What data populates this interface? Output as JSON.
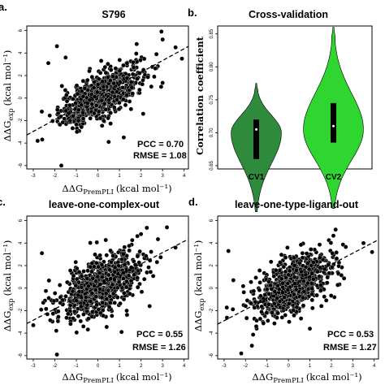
{
  "chart_data": [
    {
      "type": "scatter",
      "panel_label": "a.",
      "title": "S796",
      "xlabel_main": "ΔΔG",
      "xlabel_sub": "PremPLI",
      "xlabel_unit": "(kcal mol⁻¹)",
      "ylabel_main": "ΔΔG",
      "ylabel_sub": "exp",
      "ylabel_unit": "(kcal mol⁻¹)",
      "xlim": [
        -3.3,
        4.2
      ],
      "ylim": [
        -6.3,
        6.4
      ],
      "xticks": [
        -3,
        -2,
        -1,
        0,
        1,
        2,
        3,
        4
      ],
      "yticks": [
        -6,
        -4,
        -2,
        0,
        2,
        4,
        6
      ],
      "trend": {
        "slope": 1.05,
        "intercept": 0.18
      },
      "cloud": {
        "n": 796,
        "mean_x": 0.15,
        "mean_y": 0.25,
        "sd_x": 0.95,
        "sd_y": 1.35,
        "r": 0.7
      },
      "points": [
        [
          2.95,
          5.9
        ],
        [
          3.0,
          5.2
        ],
        [
          1.8,
          4.8
        ],
        [
          -1.9,
          4.6
        ],
        [
          3.6,
          4.5
        ],
        [
          3.9,
          3.5
        ],
        [
          -2.3,
          3.1
        ],
        [
          -1.5,
          3.6
        ],
        [
          -2.8,
          -3.8
        ],
        [
          -1.7,
          -6.0
        ],
        [
          1.2,
          -3.5
        ],
        [
          0.5,
          -3.9
        ],
        [
          2.1,
          -1.4
        ]
      ],
      "pcc_text": "PCC = 0.70",
      "rmse_text": "RMSE = 1.08"
    },
    {
      "type": "violin",
      "panel_label": "b.",
      "title": "Cross-validation",
      "ylabel": "Correlation coefficient",
      "ylim": [
        0.645,
        0.862
      ],
      "yticks": [
        "0.65",
        "0.70",
        "0.75",
        "0.80",
        "0.85"
      ],
      "categories": [
        "CV1",
        "CV2"
      ],
      "colors": [
        "#2e8b3c",
        "#2fd630"
      ],
      "series": [
        {
          "min": 0.58,
          "max": 0.775,
          "q1": 0.66,
          "median": 0.705,
          "q3": 0.72
        },
        {
          "min": 0.585,
          "max": 0.86,
          "q1": 0.685,
          "median": 0.71,
          "q3": 0.745
        }
      ]
    },
    {
      "type": "scatter",
      "panel_label": "c.",
      "title": "leave-one-complex-out",
      "xlabel_main": "ΔΔG",
      "xlabel_sub": "PremPLI",
      "xlabel_unit": "(kcal mol⁻¹)",
      "ylabel_main": "ΔΔG",
      "ylabel_sub": "exp",
      "ylabel_unit": "(kcal mol⁻¹)",
      "xlim": [
        -3.3,
        4.2
      ],
      "ylim": [
        -6.3,
        6.4
      ],
      "xticks": [
        -3,
        -2,
        -1,
        0,
        1,
        2,
        3,
        4
      ],
      "yticks": [
        -6,
        -4,
        -2,
        0,
        2,
        4,
        6
      ],
      "trend": {
        "slope": 1.0,
        "intercept": 0.15
      },
      "cloud": {
        "n": 796,
        "mean_x": 0.15,
        "mean_y": 0.25,
        "sd_x": 0.95,
        "sd_y": 1.45,
        "r": 0.55
      },
      "points": [
        [
          3.2,
          5.4
        ],
        [
          2.0,
          4.8
        ],
        [
          -2.6,
          3.1
        ],
        [
          -3.0,
          -3.3
        ],
        [
          -1.9,
          -5.9
        ],
        [
          1.1,
          -3.9
        ],
        [
          3.6,
          3.6
        ],
        [
          2.4,
          -1.6
        ]
      ],
      "pcc_text": "PCC = 0.55",
      "rmse_text": "RMSE = 1.26"
    },
    {
      "type": "scatter",
      "panel_label": "d.",
      "title": "leave-one-type-ligand-out",
      "xlabel_main": "ΔΔG",
      "xlabel_sub": "PremPLI",
      "xlabel_unit": "(kcal mol⁻¹)",
      "ylabel_main": "ΔΔG",
      "ylabel_sub": "exp",
      "ylabel_unit": "(kcal mol⁻¹)",
      "xlim": [
        -3.3,
        4.2
      ],
      "ylim": [
        -6.3,
        6.4
      ],
      "xticks": [
        -3,
        -2,
        -1,
        0,
        1,
        2,
        3,
        4
      ],
      "yticks": [
        -6,
        -4,
        -2,
        0,
        2,
        4,
        6
      ],
      "trend": {
        "slope": 1.0,
        "intercept": 0.1
      },
      "cloud": {
        "n": 796,
        "mean_x": 0.15,
        "mean_y": 0.25,
        "sd_x": 0.95,
        "sd_y": 1.45,
        "r": 0.53
      },
      "points": [
        [
          3.5,
          4.0
        ],
        [
          2.2,
          5.2
        ],
        [
          -2.8,
          3.3
        ],
        [
          -2.2,
          -5.8
        ],
        [
          1.0,
          -3.6
        ],
        [
          3.9,
          3.2
        ],
        [
          -1.5,
          -3.4
        ]
      ],
      "pcc_text": "PCC = 0.53",
      "rmse_text": "RMSE = 1.27"
    }
  ]
}
